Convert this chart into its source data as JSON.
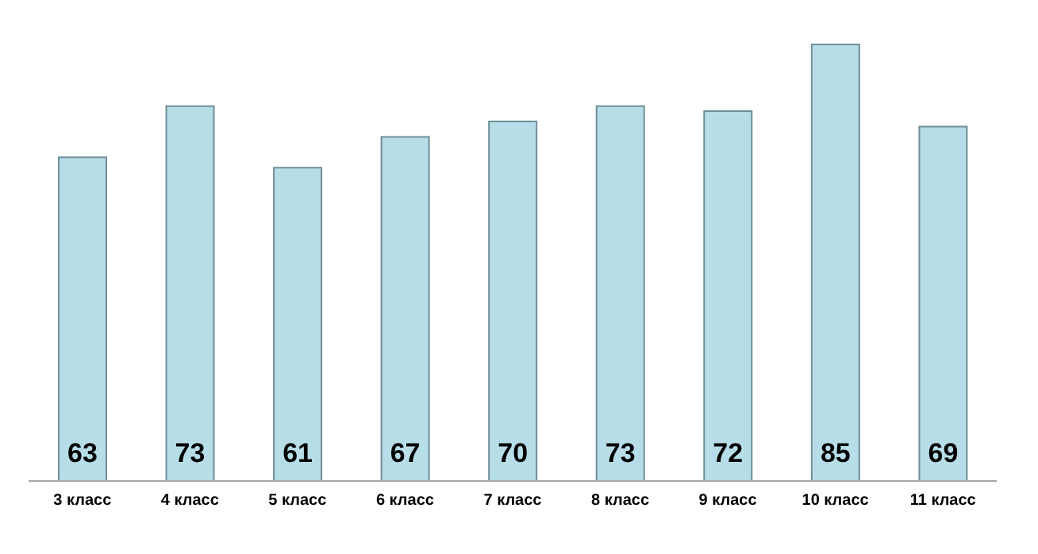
{
  "chart_data": {
    "type": "bar",
    "categories": [
      "3 класс",
      "4 класс",
      "5 класс",
      "6 класс",
      "7 класс",
      "8 класс",
      "9 класс",
      "10 класс",
      "11 класс"
    ],
    "values": [
      63,
      73,
      61,
      67,
      70,
      73,
      72,
      85,
      69
    ],
    "color": "#b7dde8",
    "data_labels": true,
    "grid": false
  }
}
